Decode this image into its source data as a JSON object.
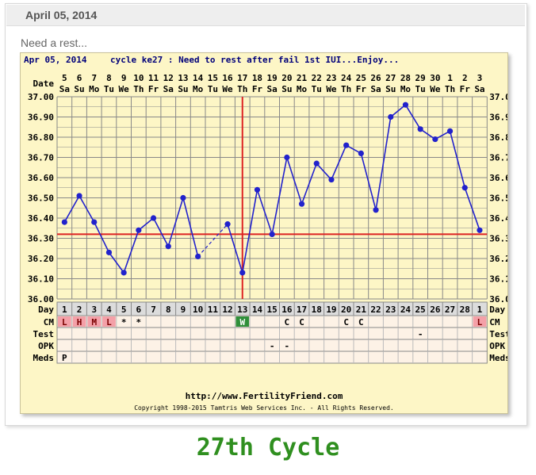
{
  "header": {
    "date": "April 05, 2014"
  },
  "post": {
    "subtitle": "Need a rest..."
  },
  "chart_header": {
    "date": "Apr 05, 2014",
    "cycle_text": "cycle ke27 : Need to rest after fail 1st IUI...Enjoy..."
  },
  "row_labels": {
    "date": "Date",
    "day": "Day",
    "cm": "CM",
    "test": "Test",
    "opk": "OPK",
    "meds": "Meds"
  },
  "footer": {
    "url": "http://www.FertilityFriend.com",
    "copyright": "Copyright 1998-2015 Tamtris Web Services Inc. - All Rights Reserved."
  },
  "caption": "27th Cycle",
  "colors": {
    "line": "#2222cc",
    "coverline": "#dd2222",
    "grid": "#888888",
    "chart_bg": "#fdf6c6",
    "caption": "#2f8f1f",
    "cm_pink": "#f4a0a8",
    "cm_green": "#2f8f3a"
  },
  "chart_data": {
    "type": "line",
    "title": "",
    "ylim": [
      36.0,
      37.0
    ],
    "y_ticks": [
      "37.00",
      "36.90",
      "36.80",
      "36.70",
      "36.60",
      "36.50",
      "36.40",
      "36.30",
      "36.20",
      "36.10",
      "36.00"
    ],
    "dates": [
      "5",
      "6",
      "7",
      "8",
      "9",
      "10",
      "11",
      "12",
      "13",
      "14",
      "15",
      "16",
      "17",
      "18",
      "19",
      "20",
      "21",
      "22",
      "23",
      "24",
      "25",
      "26",
      "27",
      "28",
      "29",
      "30",
      "1",
      "2",
      "3"
    ],
    "weekdays": [
      "Sa",
      "Su",
      "Mo",
      "Tu",
      "We",
      "Th",
      "Fr",
      "Sa",
      "Su",
      "Mo",
      "Tu",
      "We",
      "Th",
      "Fr",
      "Sa",
      "Su",
      "Mo",
      "Tu",
      "We",
      "Th",
      "Fr",
      "Sa",
      "Su",
      "Mo",
      "Tu",
      "We",
      "Th",
      "Fr",
      "Sa"
    ],
    "days": [
      "1",
      "2",
      "3",
      "4",
      "5",
      "6",
      "7",
      "8",
      "9",
      "10",
      "11",
      "12",
      "13",
      "14",
      "15",
      "16",
      "17",
      "18",
      "19",
      "20",
      "21",
      "22",
      "23",
      "24",
      "25",
      "26",
      "27",
      "28",
      "1"
    ],
    "temps": [
      36.38,
      36.51,
      36.38,
      36.23,
      36.13,
      36.34,
      36.4,
      36.26,
      36.5,
      36.21,
      null,
      36.37,
      36.13,
      36.54,
      36.32,
      36.7,
      36.47,
      36.67,
      36.59,
      36.76,
      36.72,
      36.44,
      36.9,
      36.96,
      36.84,
      36.79,
      36.83,
      36.55,
      36.34
    ],
    "coverline": 36.32,
    "ovulation_day": 13,
    "cm": [
      "L",
      "H",
      "M",
      "L",
      "*",
      "*",
      "",
      "",
      "",
      "",
      "",
      "",
      "W",
      "",
      "",
      "C",
      "C",
      "",
      "",
      "C",
      "C",
      "",
      "",
      "",
      "",
      "",
      "",
      "",
      "L"
    ],
    "test": [
      "",
      "",
      "",
      "",
      "",
      "",
      "",
      "",
      "",
      "",
      "",
      "",
      "",
      "",
      "",
      "",
      "",
      "",
      "",
      "",
      "",
      "",
      "",
      "",
      "-",
      "",
      "",
      "",
      ""
    ],
    "opk": [
      "",
      "",
      "",
      "",
      "",
      "",
      "",
      "",
      "",
      "",
      "",
      "",
      "",
      "",
      "-",
      "-",
      "",
      "",
      "",
      "",
      "",
      "",
      "",
      "",
      "",
      "",
      "",
      "",
      ""
    ],
    "meds": [
      "P",
      "",
      "",
      "",
      "",
      "",
      "",
      "",
      "",
      "",
      "",
      "",
      "",
      "",
      "",
      "",
      "",
      "",
      "",
      "",
      "",
      "",
      "",
      "",
      "",
      "",
      "",
      "",
      ""
    ]
  }
}
